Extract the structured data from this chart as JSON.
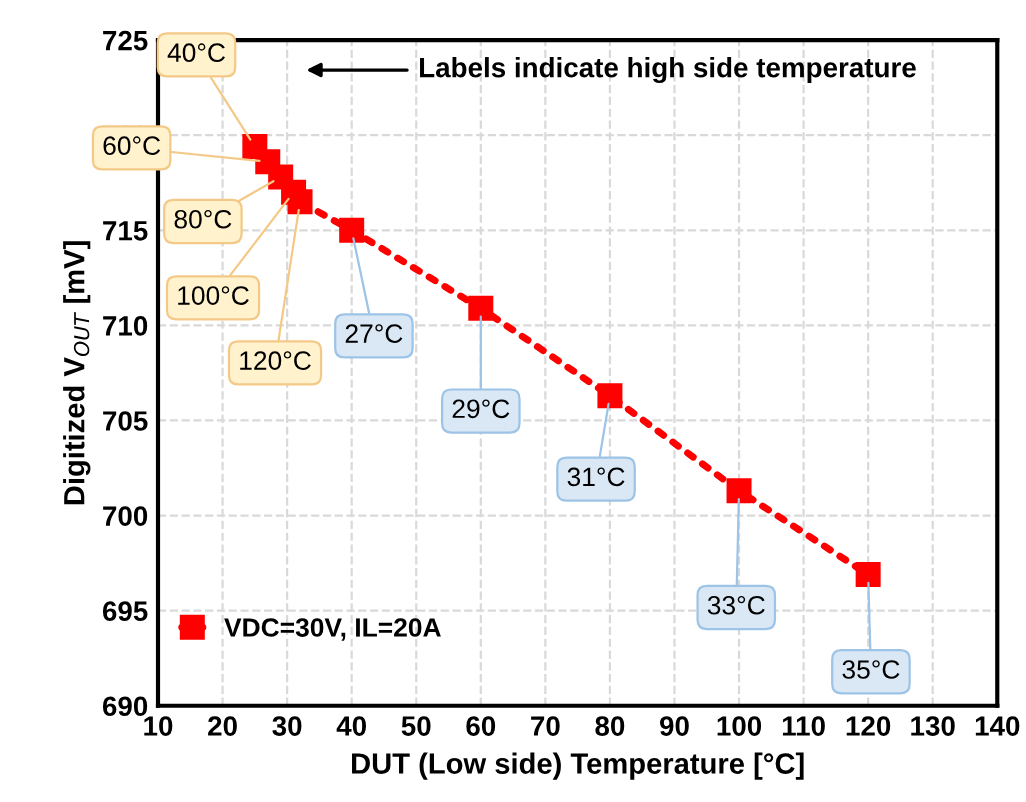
{
  "chart_data": {
    "type": "line",
    "xlabel": "DUT (Low side) Temperature [°C]",
    "ylabel": "Digitized V$_{OUT}$ [mV]",
    "series": [
      {
        "name": "VDC=30V, IL=20A",
        "color": "#ff0000",
        "x": [
          25,
          27,
          29,
          31,
          32,
          40,
          60,
          80,
          100,
          120
        ],
        "values": [
          719.4,
          718.6,
          717.8,
          717.0,
          716.5,
          715.0,
          710.9,
          706.3,
          701.3,
          696.9
        ]
      }
    ],
    "xlim": [
      10,
      140
    ],
    "xticks": [
      10,
      20,
      30,
      40,
      50,
      60,
      70,
      80,
      90,
      100,
      110,
      120,
      130,
      140
    ],
    "ylim": [
      690,
      725
    ],
    "yticks": [
      690,
      695,
      700,
      705,
      710,
      715,
      720,
      725
    ],
    "grid": true,
    "legend": "bottom left",
    "marker": "square",
    "line_style": "dotted",
    "annotations": [
      "Labels indicate high side temperature",
      {
        "text": "40°C",
        "x": 25,
        "y": 719.4
      },
      {
        "text": "60°C",
        "x": 27,
        "y": 718.6
      },
      {
        "text": "80°C",
        "x": 29,
        "y": 717.8
      },
      {
        "text": "100°C",
        "x": 31,
        "y": 717.0
      },
      {
        "text": "120°C",
        "x": 32,
        "y": 716.5
      },
      {
        "text": "27°C",
        "x": 40,
        "y": 715.0
      },
      {
        "text": "29°C",
        "x": 60,
        "y": 710.9
      },
      {
        "text": "31°C",
        "x": 80,
        "y": 706.3
      },
      {
        "text": "33°C",
        "x": 100,
        "y": 701.3
      },
      {
        "text": "35°C",
        "x": 120,
        "y": 696.9
      }
    ]
  }
}
